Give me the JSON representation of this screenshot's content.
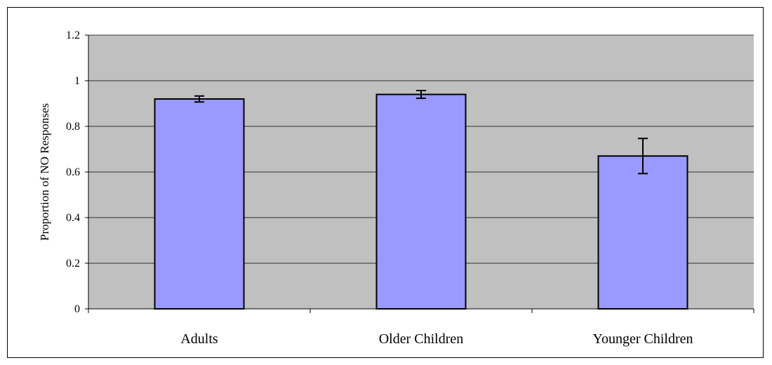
{
  "chart_data": {
    "type": "bar",
    "title": "",
    "xlabel": "",
    "ylabel": "Proportion of NO Responses",
    "categories": [
      "Adults",
      "Older Children",
      "Younger Children"
    ],
    "series": [
      {
        "values": [
          0.92,
          0.94,
          0.67
        ],
        "error": [
          0.013,
          0.017,
          0.077
        ]
      }
    ],
    "ylim": [
      0,
      1.2
    ],
    "yticks": [
      0,
      0.2,
      0.4,
      0.6,
      0.8,
      1,
      1.2
    ],
    "ytick_labels": [
      "0",
      "0.2",
      "0.4",
      "0.6",
      "0.8",
      "1",
      "1.2"
    ],
    "grid": true,
    "legend": "none",
    "colors": {
      "plot_background": "#c0c0c0",
      "bar_fill": "#9999ff",
      "bar_stroke": "#000000",
      "gridline": "#000000"
    }
  }
}
